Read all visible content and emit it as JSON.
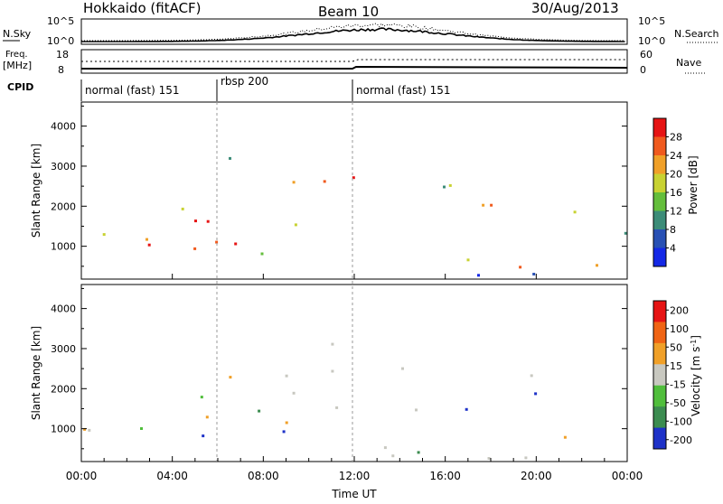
{
  "header": {
    "station": "Hokkaido (fitACF)",
    "beam": "Beam 10",
    "date": "30/Aug/2013"
  },
  "top_panels": {
    "nsky_label": "N.Sky",
    "nsearch_label": "N.Search",
    "nsky_ticks": [
      "10^5",
      "10^0"
    ],
    "nsearch_ticks": [
      "10^5",
      "10^0"
    ],
    "freq_label_1": "Freq.",
    "freq_label_2": "[MHz]",
    "freq_ticks": [
      "18",
      "8"
    ],
    "nave_label": "Nave",
    "nave_ticks": [
      "60",
      "0"
    ],
    "cpid_label": "CPID",
    "cpid_segments": [
      {
        "label": "normal (fast) 151",
        "start_hour": 0,
        "end_hour": 6
      },
      {
        "label": "rbsp 200",
        "start_hour": 6,
        "end_hour": 12
      },
      {
        "label": "normal (fast) 151",
        "start_hour": 12,
        "end_hour": 24
      }
    ]
  },
  "chart_data": [
    {
      "type": "heatmap",
      "title": "",
      "ylabel": "Slant Range [km]",
      "xlabel": "",
      "xlim": [
        0,
        24
      ],
      "ylim": [
        180,
        4600
      ],
      "yticks": [
        "1000",
        "2000",
        "3000",
        "4000"
      ],
      "colorbar": {
        "label": "Power [dB]",
        "ticks": [
          "4",
          "8",
          "12",
          "16",
          "20",
          "24",
          "28"
        ],
        "colors": [
          "#1428e6",
          "#2850b4",
          "#3c8c78",
          "#64be3c",
          "#c8d232",
          "#f0a028",
          "#f05a1e",
          "#e61414"
        ]
      }
    },
    {
      "type": "heatmap",
      "title": "",
      "ylabel": "Slant Range [km]",
      "xlabel": "Time UT",
      "xlim": [
        0,
        24
      ],
      "ylim": [
        180,
        4600
      ],
      "yticks": [
        "1000",
        "2000",
        "3000",
        "4000"
      ],
      "xticks": [
        "00:00",
        "04:00",
        "08:00",
        "12:00",
        "16:00",
        "20:00",
        "00:00"
      ],
      "colorbar": {
        "label": "Velocity [m s^-1]",
        "ticks": [
          "200",
          "100",
          "50",
          "15",
          "-15",
          "-50",
          "-100",
          "-200"
        ],
        "colors": [
          "#1e32c8",
          "#3c8c50",
          "#50be3c",
          "#c8c8c0",
          "#f0a028",
          "#f06414",
          "#e61414"
        ]
      }
    }
  ]
}
